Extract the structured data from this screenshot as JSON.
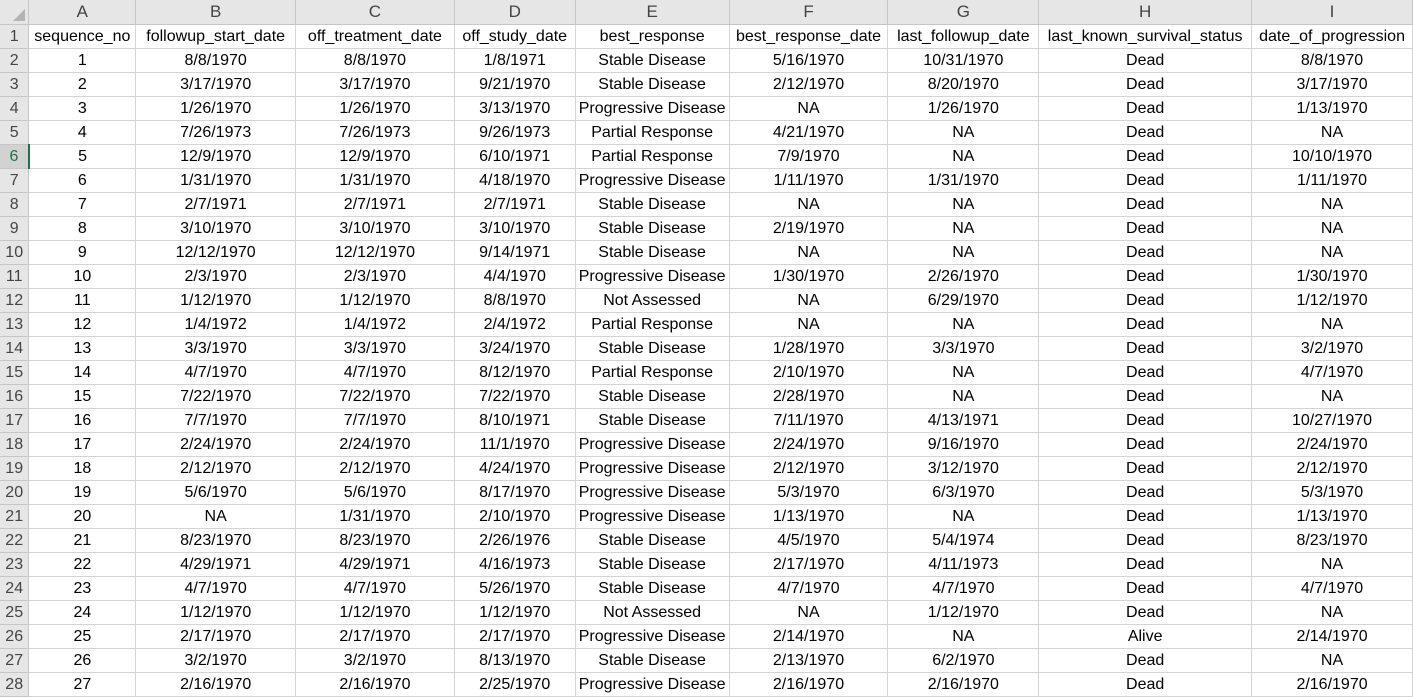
{
  "column_letters": [
    "A",
    "B",
    "C",
    "D",
    "E",
    "F",
    "G",
    "H",
    "I"
  ],
  "rows": [
    {
      "n": "1",
      "cells": [
        "sequence_no",
        "followup_start_date",
        "off_treatment_date",
        "off_study_date",
        "best_response",
        "best_response_date",
        "last_followup_date",
        "last_known_survival_status",
        "date_of_progression"
      ]
    },
    {
      "n": "2",
      "cells": [
        "1",
        "8/8/1970",
        "8/8/1970",
        "1/8/1971",
        "Stable Disease",
        "5/16/1970",
        "10/31/1970",
        "Dead",
        "8/8/1970"
      ]
    },
    {
      "n": "3",
      "cells": [
        "2",
        "3/17/1970",
        "3/17/1970",
        "9/21/1970",
        "Stable Disease",
        "2/12/1970",
        "8/20/1970",
        "Dead",
        "3/17/1970"
      ]
    },
    {
      "n": "4",
      "cells": [
        "3",
        "1/26/1970",
        "1/26/1970",
        "3/13/1970",
        "Progressive Disease",
        "NA",
        "1/26/1970",
        "Dead",
        "1/13/1970"
      ]
    },
    {
      "n": "5",
      "cells": [
        "4",
        "7/26/1973",
        "7/26/1973",
        "9/26/1973",
        "Partial Response",
        "4/21/1970",
        "NA",
        "Dead",
        "NA"
      ]
    },
    {
      "n": "6",
      "cells": [
        "5",
        "12/9/1970",
        "12/9/1970",
        "6/10/1971",
        "Partial Response",
        "7/9/1970",
        "NA",
        "Dead",
        "10/10/1970"
      ]
    },
    {
      "n": "7",
      "cells": [
        "6",
        "1/31/1970",
        "1/31/1970",
        "4/18/1970",
        "Progressive Disease",
        "1/11/1970",
        "1/31/1970",
        "Dead",
        "1/11/1970"
      ]
    },
    {
      "n": "8",
      "cells": [
        "7",
        "2/7/1971",
        "2/7/1971",
        "2/7/1971",
        "Stable Disease",
        "NA",
        "NA",
        "Dead",
        "NA"
      ]
    },
    {
      "n": "9",
      "cells": [
        "8",
        "3/10/1970",
        "3/10/1970",
        "3/10/1970",
        "Stable Disease",
        "2/19/1970",
        "NA",
        "Dead",
        "NA"
      ]
    },
    {
      "n": "10",
      "cells": [
        "9",
        "12/12/1970",
        "12/12/1970",
        "9/14/1971",
        "Stable Disease",
        "NA",
        "NA",
        "Dead",
        "NA"
      ]
    },
    {
      "n": "11",
      "cells": [
        "10",
        "2/3/1970",
        "2/3/1970",
        "4/4/1970",
        "Progressive Disease",
        "1/30/1970",
        "2/26/1970",
        "Dead",
        "1/30/1970"
      ]
    },
    {
      "n": "12",
      "cells": [
        "11",
        "1/12/1970",
        "1/12/1970",
        "8/8/1970",
        "Not Assessed",
        "NA",
        "6/29/1970",
        "Dead",
        "1/12/1970"
      ]
    },
    {
      "n": "13",
      "cells": [
        "12",
        "1/4/1972",
        "1/4/1972",
        "2/4/1972",
        "Partial Response",
        "NA",
        "NA",
        "Dead",
        "NA"
      ]
    },
    {
      "n": "14",
      "cells": [
        "13",
        "3/3/1970",
        "3/3/1970",
        "3/24/1970",
        "Stable Disease",
        "1/28/1970",
        "3/3/1970",
        "Dead",
        "3/2/1970"
      ]
    },
    {
      "n": "15",
      "cells": [
        "14",
        "4/7/1970",
        "4/7/1970",
        "8/12/1970",
        "Partial Response",
        "2/10/1970",
        "NA",
        "Dead",
        "4/7/1970"
      ]
    },
    {
      "n": "16",
      "cells": [
        "15",
        "7/22/1970",
        "7/22/1970",
        "7/22/1970",
        "Stable Disease",
        "2/28/1970",
        "NA",
        "Dead",
        "NA"
      ]
    },
    {
      "n": "17",
      "cells": [
        "16",
        "7/7/1970",
        "7/7/1970",
        "8/10/1971",
        "Stable Disease",
        "7/11/1970",
        "4/13/1971",
        "Dead",
        "10/27/1970"
      ]
    },
    {
      "n": "18",
      "cells": [
        "17",
        "2/24/1970",
        "2/24/1970",
        "11/1/1970",
        "Progressive Disease",
        "2/24/1970",
        "9/16/1970",
        "Dead",
        "2/24/1970"
      ]
    },
    {
      "n": "19",
      "cells": [
        "18",
        "2/12/1970",
        "2/12/1970",
        "4/24/1970",
        "Progressive Disease",
        "2/12/1970",
        "3/12/1970",
        "Dead",
        "2/12/1970"
      ]
    },
    {
      "n": "20",
      "cells": [
        "19",
        "5/6/1970",
        "5/6/1970",
        "8/17/1970",
        "Progressive Disease",
        "5/3/1970",
        "6/3/1970",
        "Dead",
        "5/3/1970"
      ]
    },
    {
      "n": "21",
      "cells": [
        "20",
        "NA",
        "1/31/1970",
        "2/10/1970",
        "Progressive Disease",
        "1/13/1970",
        "NA",
        "Dead",
        "1/13/1970"
      ]
    },
    {
      "n": "22",
      "cells": [
        "21",
        "8/23/1970",
        "8/23/1970",
        "2/26/1976",
        "Stable Disease",
        "4/5/1970",
        "5/4/1974",
        "Dead",
        "8/23/1970"
      ]
    },
    {
      "n": "23",
      "cells": [
        "22",
        "4/29/1971",
        "4/29/1971",
        "4/16/1973",
        "Stable Disease",
        "2/17/1970",
        "4/11/1973",
        "Dead",
        "NA"
      ]
    },
    {
      "n": "24",
      "cells": [
        "23",
        "4/7/1970",
        "4/7/1970",
        "5/26/1970",
        "Stable Disease",
        "4/7/1970",
        "4/7/1970",
        "Dead",
        "4/7/1970"
      ]
    },
    {
      "n": "25",
      "cells": [
        "24",
        "1/12/1970",
        "1/12/1970",
        "1/12/1970",
        "Not Assessed",
        "NA",
        "1/12/1970",
        "Dead",
        "NA"
      ]
    },
    {
      "n": "26",
      "cells": [
        "25",
        "2/17/1970",
        "2/17/1970",
        "2/17/1970",
        "Progressive Disease",
        "2/14/1970",
        "NA",
        "Alive",
        "2/14/1970"
      ]
    },
    {
      "n": "27",
      "cells": [
        "26",
        "3/2/1970",
        "3/2/1970",
        "8/13/1970",
        "Stable Disease",
        "2/13/1970",
        "6/2/1970",
        "Dead",
        "NA"
      ]
    },
    {
      "n": "28",
      "cells": [
        "27",
        "2/16/1970",
        "2/16/1970",
        "2/25/1970",
        "Progressive Disease",
        "2/16/1970",
        "2/16/1970",
        "Dead",
        "2/16/1970"
      ]
    }
  ],
  "active_row": "6",
  "colors": {
    "header_bg": "#e6e6e6",
    "active_accent": "#217346",
    "gridline": "#d4d4d4"
  }
}
